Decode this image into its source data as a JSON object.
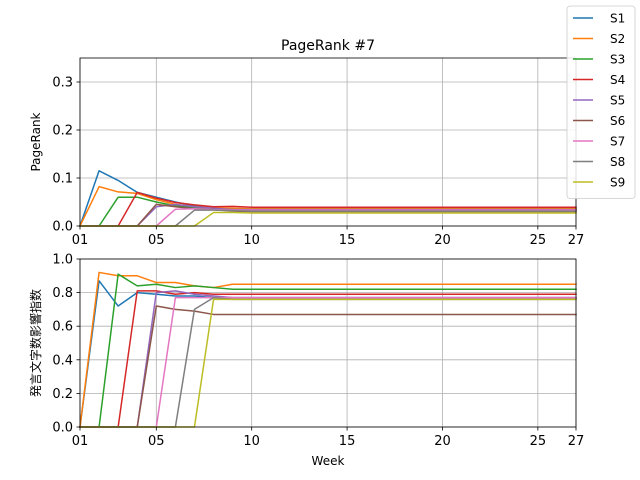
{
  "chart_data": [
    {
      "type": "line",
      "title": "PageRank #7",
      "xlabel": "",
      "ylabel": "PageRank",
      "xlim": [
        1,
        27
      ],
      "ylim": [
        0,
        0.35
      ],
      "xticks": [
        1,
        5,
        10,
        15,
        20,
        25,
        27
      ],
      "xtick_labels": [
        "01",
        "05",
        "10",
        "15",
        "20",
        "25",
        "27"
      ],
      "yticks": [
        0,
        0.1,
        0.2,
        0.3
      ],
      "ytick_labels": [
        "0.0",
        "0.1",
        "0.2",
        "0.3"
      ],
      "grid": true,
      "x": [
        1,
        2,
        3,
        4,
        5,
        6,
        7,
        8,
        9,
        10,
        11,
        12,
        13,
        14,
        15,
        16,
        17,
        18,
        19,
        20,
        21,
        22,
        23,
        24,
        25,
        26,
        27
      ],
      "series": [
        {
          "name": "S1",
          "values": [
            0,
            0.115,
            0.095,
            0.07,
            0.06,
            0.05,
            0.042,
            0.038,
            0.036,
            0.036,
            0.036,
            0.036,
            0.036,
            0.036,
            0.036,
            0.036,
            0.036,
            0.036,
            0.036,
            0.036,
            0.036,
            0.036,
            0.036,
            0.036,
            0.036,
            0.036,
            0.036
          ]
        },
        {
          "name": "S2",
          "values": [
            0,
            0.082,
            0.071,
            0.068,
            0.055,
            0.045,
            0.04,
            0.038,
            0.037,
            0.036,
            0.036,
            0.036,
            0.036,
            0.036,
            0.036,
            0.036,
            0.036,
            0.036,
            0.036,
            0.036,
            0.036,
            0.036,
            0.036,
            0.036,
            0.036,
            0.036,
            0.036
          ]
        },
        {
          "name": "S3",
          "values": [
            0,
            0,
            0.06,
            0.06,
            0.05,
            0.042,
            0.038,
            0.035,
            0.034,
            0.034,
            0.034,
            0.034,
            0.034,
            0.034,
            0.034,
            0.034,
            0.034,
            0.034,
            0.034,
            0.034,
            0.034,
            0.034,
            0.034,
            0.034,
            0.034,
            0.034,
            0.034
          ]
        },
        {
          "name": "S4",
          "values": [
            0,
            0,
            0,
            0.07,
            0.058,
            0.049,
            0.044,
            0.04,
            0.041,
            0.039,
            0.039,
            0.039,
            0.039,
            0.039,
            0.039,
            0.039,
            0.039,
            0.039,
            0.039,
            0.039,
            0.039,
            0.039,
            0.039,
            0.039,
            0.039,
            0.039,
            0.039
          ]
        },
        {
          "name": "S5",
          "values": [
            0,
            0,
            0,
            0,
            0.04,
            0.045,
            0.04,
            0.037,
            0.034,
            0.034,
            0.034,
            0.034,
            0.034,
            0.034,
            0.034,
            0.034,
            0.034,
            0.034,
            0.034,
            0.034,
            0.034,
            0.034,
            0.034,
            0.034,
            0.034,
            0.034,
            0.034
          ]
        },
        {
          "name": "S6",
          "values": [
            0,
            0,
            0,
            0,
            0.045,
            0.04,
            0.036,
            0.034,
            0.031,
            0.03,
            0.03,
            0.03,
            0.03,
            0.03,
            0.03,
            0.03,
            0.03,
            0.03,
            0.03,
            0.03,
            0.03,
            0.03,
            0.03,
            0.03,
            0.03,
            0.03,
            0.03
          ]
        },
        {
          "name": "S7",
          "values": [
            0,
            0,
            0,
            0,
            0,
            0.035,
            0.036,
            0.034,
            0.033,
            0.033,
            0.033,
            0.033,
            0.033,
            0.033,
            0.033,
            0.033,
            0.033,
            0.033,
            0.033,
            0.033,
            0.033,
            0.033,
            0.033,
            0.033,
            0.033,
            0.033,
            0.033
          ]
        },
        {
          "name": "S8",
          "values": [
            0,
            0,
            0,
            0,
            0,
            0,
            0.033,
            0.033,
            0.032,
            0.031,
            0.031,
            0.031,
            0.031,
            0.031,
            0.031,
            0.031,
            0.031,
            0.031,
            0.031,
            0.031,
            0.031,
            0.031,
            0.031,
            0.031,
            0.031,
            0.031,
            0.031
          ]
        },
        {
          "name": "S9",
          "values": [
            0,
            0,
            0,
            0,
            0,
            0,
            0,
            0.028,
            0.028,
            0.027,
            0.027,
            0.027,
            0.027,
            0.027,
            0.027,
            0.027,
            0.027,
            0.027,
            0.027,
            0.027,
            0.027,
            0.027,
            0.027,
            0.027,
            0.027,
            0.027,
            0.027
          ]
        }
      ]
    },
    {
      "type": "line",
      "title": "",
      "xlabel": "Week",
      "ylabel": "発言文字数影響指数",
      "xlim": [
        1,
        27
      ],
      "ylim": [
        0,
        1.0
      ],
      "xticks": [
        1,
        5,
        10,
        15,
        20,
        25,
        27
      ],
      "xtick_labels": [
        "01",
        "05",
        "10",
        "15",
        "20",
        "25",
        "27"
      ],
      "yticks": [
        0,
        0.2,
        0.4,
        0.6,
        0.8,
        1.0
      ],
      "ytick_labels": [
        "0.0",
        "0.2",
        "0.4",
        "0.6",
        "0.8",
        "1.0"
      ],
      "grid": true,
      "x": [
        1,
        2,
        3,
        4,
        5,
        6,
        7,
        8,
        9,
        10,
        11,
        12,
        13,
        14,
        15,
        16,
        17,
        18,
        19,
        20,
        21,
        22,
        23,
        24,
        25,
        26,
        27
      ],
      "series": [
        {
          "name": "S1",
          "values": [
            0,
            0.87,
            0.72,
            0.8,
            0.79,
            0.78,
            0.78,
            0.77,
            0.77,
            0.77,
            0.77,
            0.77,
            0.77,
            0.77,
            0.77,
            0.77,
            0.77,
            0.77,
            0.77,
            0.77,
            0.77,
            0.77,
            0.77,
            0.77,
            0.77,
            0.77,
            0.77
          ]
        },
        {
          "name": "S2",
          "values": [
            0,
            0.92,
            0.9,
            0.9,
            0.86,
            0.86,
            0.84,
            0.83,
            0.85,
            0.85,
            0.85,
            0.85,
            0.85,
            0.85,
            0.85,
            0.85,
            0.85,
            0.85,
            0.85,
            0.85,
            0.85,
            0.85,
            0.85,
            0.85,
            0.85,
            0.85,
            0.85
          ]
        },
        {
          "name": "S3",
          "values": [
            0,
            0,
            0.91,
            0.84,
            0.85,
            0.83,
            0.84,
            0.83,
            0.82,
            0.82,
            0.82,
            0.82,
            0.82,
            0.82,
            0.82,
            0.82,
            0.82,
            0.82,
            0.82,
            0.82,
            0.82,
            0.82,
            0.82,
            0.82,
            0.82,
            0.82,
            0.82
          ]
        },
        {
          "name": "S4",
          "values": [
            0,
            0,
            0,
            0.81,
            0.81,
            0.79,
            0.8,
            0.79,
            0.79,
            0.79,
            0.79,
            0.79,
            0.79,
            0.79,
            0.79,
            0.79,
            0.79,
            0.79,
            0.79,
            0.79,
            0.79,
            0.79,
            0.79,
            0.79,
            0.79,
            0.79,
            0.79
          ]
        },
        {
          "name": "S5",
          "values": [
            0,
            0,
            0,
            0,
            0.8,
            0.81,
            0.79,
            0.78,
            0.77,
            0.77,
            0.77,
            0.77,
            0.77,
            0.77,
            0.77,
            0.77,
            0.77,
            0.77,
            0.77,
            0.77,
            0.77,
            0.77,
            0.77,
            0.77,
            0.77,
            0.77,
            0.77
          ]
        },
        {
          "name": "S6",
          "values": [
            0,
            0,
            0,
            0,
            0.72,
            0.7,
            0.69,
            0.67,
            0.67,
            0.67,
            0.67,
            0.67,
            0.67,
            0.67,
            0.67,
            0.67,
            0.67,
            0.67,
            0.67,
            0.67,
            0.67,
            0.67,
            0.67,
            0.67,
            0.67,
            0.67,
            0.67
          ]
        },
        {
          "name": "S7",
          "values": [
            0,
            0,
            0,
            0,
            0,
            0.77,
            0.77,
            0.77,
            0.77,
            0.77,
            0.77,
            0.77,
            0.77,
            0.77,
            0.77,
            0.77,
            0.77,
            0.77,
            0.77,
            0.77,
            0.77,
            0.77,
            0.77,
            0.77,
            0.77,
            0.77,
            0.77
          ]
        },
        {
          "name": "S8",
          "values": [
            0,
            0,
            0,
            0,
            0,
            0,
            0.7,
            0.77,
            0.76,
            0.76,
            0.76,
            0.76,
            0.76,
            0.76,
            0.76,
            0.76,
            0.76,
            0.76,
            0.76,
            0.76,
            0.76,
            0.76,
            0.76,
            0.76,
            0.76,
            0.76,
            0.76
          ]
        },
        {
          "name": "S9",
          "values": [
            0,
            0,
            0,
            0,
            0,
            0,
            0,
            0.76,
            0.76,
            0.76,
            0.76,
            0.76,
            0.76,
            0.76,
            0.76,
            0.76,
            0.76,
            0.76,
            0.76,
            0.76,
            0.76,
            0.76,
            0.76,
            0.76,
            0.76,
            0.76,
            0.76
          ]
        }
      ]
    }
  ],
  "legend": {
    "placement": "top-right",
    "entries": [
      {
        "name": "S1",
        "color": "#1f77b4"
      },
      {
        "name": "S2",
        "color": "#ff7f0e"
      },
      {
        "name": "S3",
        "color": "#2ca02c"
      },
      {
        "name": "S4",
        "color": "#d62728"
      },
      {
        "name": "S5",
        "color": "#9467bd"
      },
      {
        "name": "S6",
        "color": "#8c564b"
      },
      {
        "name": "S7",
        "color": "#e377c2"
      },
      {
        "name": "S8",
        "color": "#7f7f7f"
      },
      {
        "name": "S9",
        "color": "#bcbd22"
      }
    ]
  }
}
